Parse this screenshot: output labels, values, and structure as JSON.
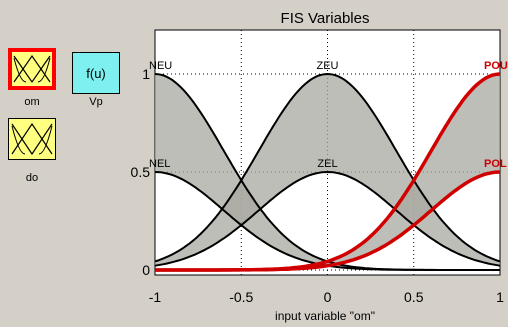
{
  "window": {
    "title": "FIS Variables"
  },
  "variables": {
    "om": "om",
    "vp": "Vp",
    "vp_block_text": "f(u)",
    "do": "do"
  },
  "chart_data": {
    "type": "line",
    "xlabel": "input variable \"om\"",
    "xlim": [
      -1,
      1
    ],
    "ylim": [
      0,
      1
    ],
    "xticks": [
      "-1",
      "-0.5",
      "0",
      "0.5",
      "1"
    ],
    "yticks": [
      "0",
      "0.5",
      "1"
    ],
    "grid": true,
    "series": [
      {
        "name": "NEU",
        "center": -1,
        "sigma": 0.4,
        "height": 1,
        "color": "#000000",
        "highlighted": false
      },
      {
        "name": "ZEU",
        "center": 0,
        "sigma": 0.4,
        "height": 1,
        "color": "#000000",
        "highlighted": false
      },
      {
        "name": "POU",
        "center": 1,
        "sigma": 0.4,
        "height": 1,
        "color": "#d00000",
        "highlighted": true
      },
      {
        "name": "NEL",
        "center": -1,
        "sigma": 0.4,
        "height": 0.5,
        "color": "#000000",
        "highlighted": false
      },
      {
        "name": "ZEL",
        "center": 0,
        "sigma": 0.4,
        "height": 0.5,
        "color": "#000000",
        "highlighted": false
      },
      {
        "name": "POL",
        "center": 1,
        "sigma": 0.4,
        "height": 0.5,
        "color": "#d00000",
        "highlighted": true
      }
    ],
    "fill_color": "#a8a8a0"
  }
}
